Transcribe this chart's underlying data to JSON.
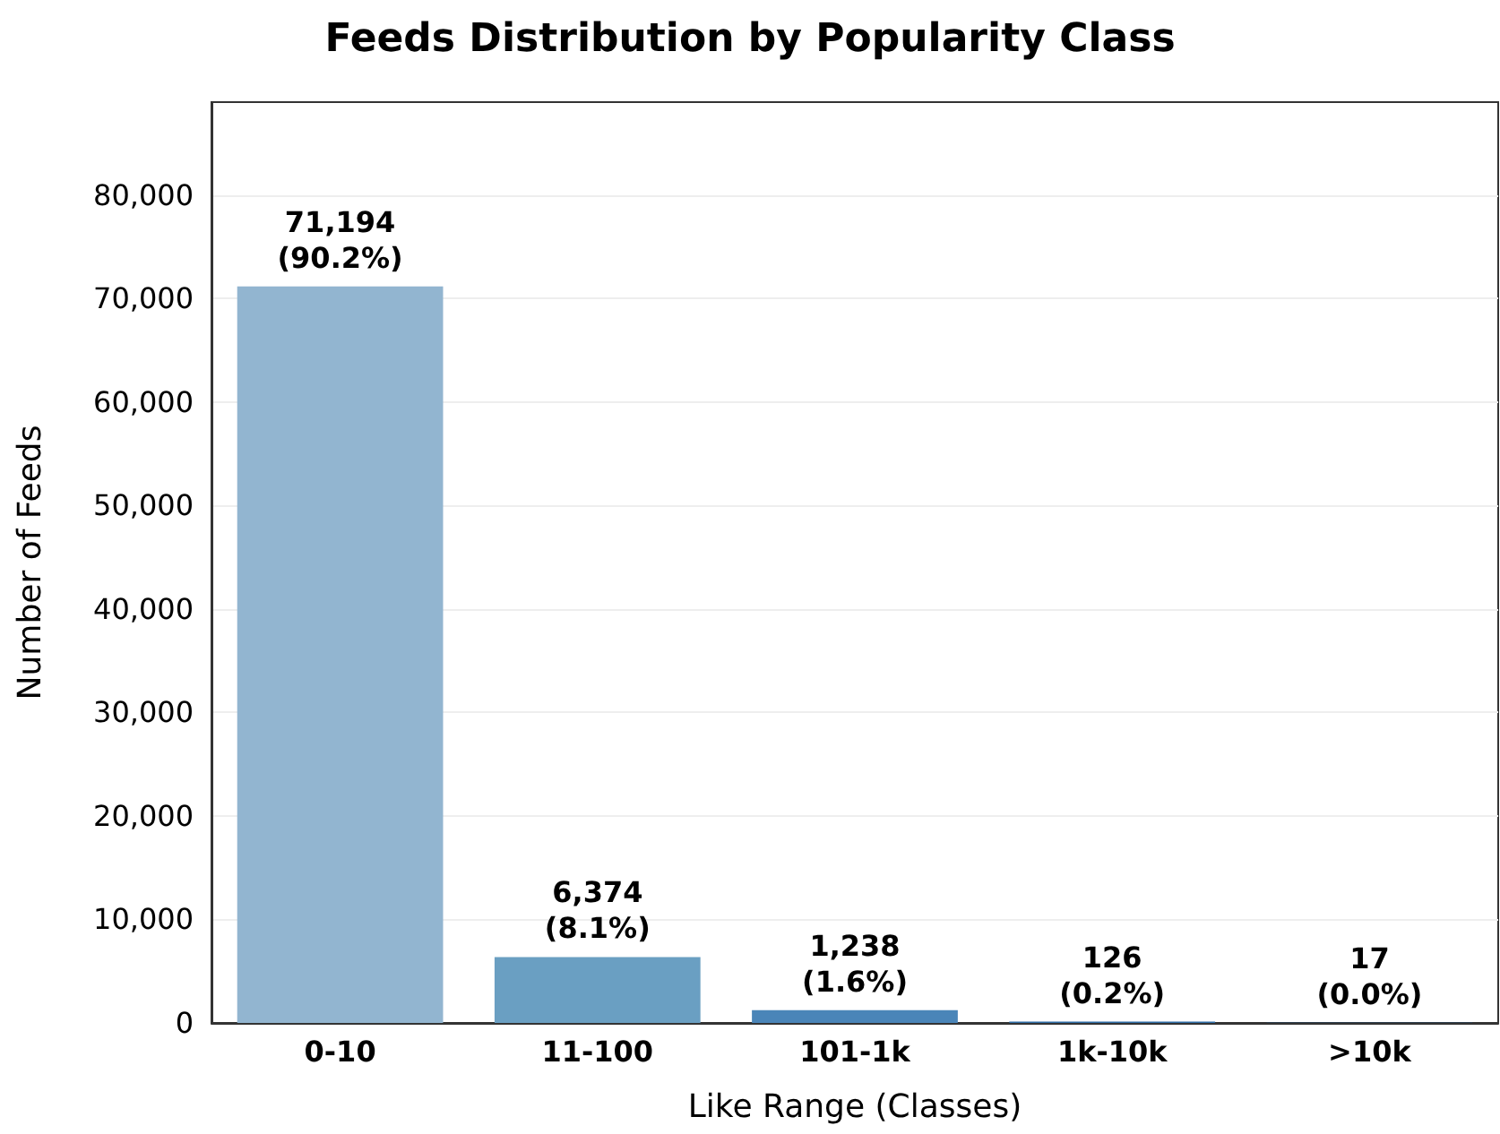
{
  "chart_data": {
    "type": "bar",
    "title": "Feeds Distribution by Popularity Class",
    "xlabel": "Like Range (Classes)",
    "ylabel": "Number of Feeds",
    "categories": [
      "0-10",
      "11-100",
      "101-1k",
      "1k-10k",
      ">10k"
    ],
    "values": [
      71194,
      6374,
      1238,
      126,
      17
    ],
    "colors": [
      "#92b5d0",
      "#6a9fc2",
      "#4a85b8",
      "#2f6da5",
      "#1c5a96"
    ],
    "value_labels": [
      "71,194\n(90.2%)",
      "6,374\n(8.1%)",
      "1,238\n(1.6%)",
      "126\n(0.2%)",
      "17\n(0.0%)"
    ],
    "ylim": [
      0,
      89000
    ],
    "yticks": [
      0,
      {
        "value": 10000,
        "label": "10,000"
      },
      {
        "value": 20000,
        "label": "20,000"
      },
      {
        "value": 30000,
        "label": "30,000"
      },
      {
        "value": 40000,
        "label": "40,000"
      },
      {
        "value": 50000,
        "label": "50,000"
      },
      {
        "value": 60000,
        "label": "60,000"
      },
      {
        "value": 70000,
        "label": "70,000"
      },
      {
        "value": 80000,
        "label": "80,000"
      }
    ],
    "grid": "y"
  }
}
